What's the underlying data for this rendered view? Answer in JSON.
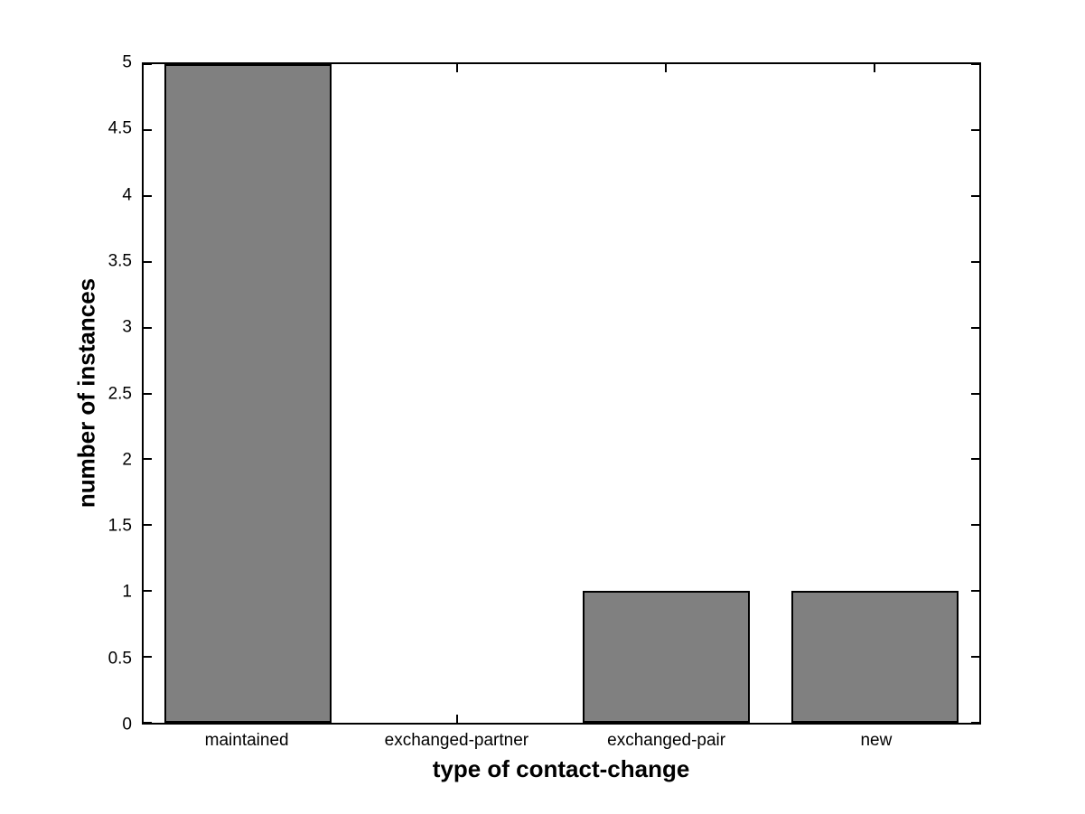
{
  "chart_data": {
    "type": "bar",
    "title": "",
    "xlabel": "type of contact-change",
    "ylabel": "number of instances",
    "categories": [
      "maintained",
      "exchanged-partner",
      "exchanged-pair",
      "new"
    ],
    "values": [
      5,
      0,
      1,
      1
    ],
    "ylim": [
      0,
      5
    ],
    "yticks": [
      0,
      0.5,
      1,
      1.5,
      2,
      2.5,
      3,
      3.5,
      4,
      4.5,
      5
    ],
    "ytick_labels": [
      "0",
      "0.5",
      "1",
      "1.5",
      "2",
      "2.5",
      "3",
      "3.5",
      "4",
      "4.5",
      "5"
    ],
    "bar_width_fraction": 0.8,
    "grid": false,
    "legend": null,
    "tick_direction": "in",
    "colors": {
      "bar_fill": "#808080",
      "bar_edge": "#000000",
      "axis": "#000000",
      "text": "#000000",
      "background": "#ffffff"
    }
  }
}
